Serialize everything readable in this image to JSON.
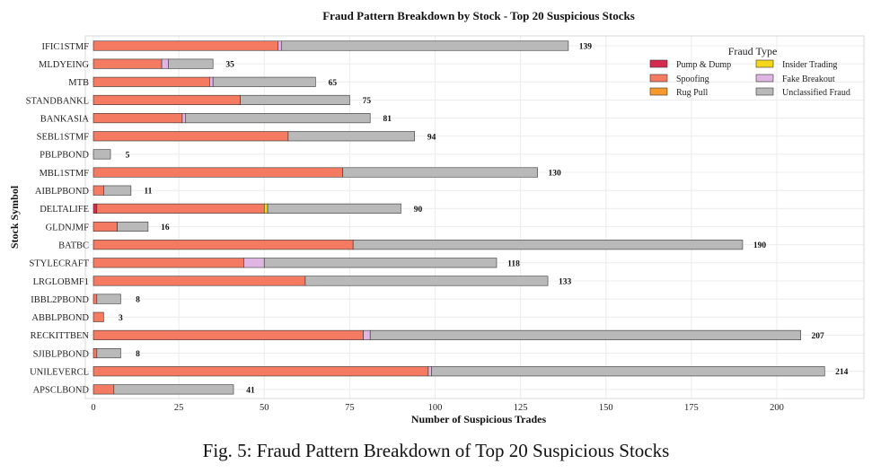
{
  "caption": "Fig. 5: Fraud Pattern Breakdown of Top 20 Suspicious Stocks",
  "chart_data": {
    "type": "bar",
    "orientation": "horizontal",
    "stacked": true,
    "title": "Fraud Pattern Breakdown by Stock - Top 20 Suspicious Stocks",
    "xlabel": "Number of Suspicious Trades",
    "ylabel": "Stock Symbol",
    "xlim": [
      0,
      225
    ],
    "xticks": [
      0,
      25,
      50,
      75,
      100,
      125,
      150,
      175,
      200
    ],
    "grid": true,
    "legend_title": "Fraud Type",
    "legend_position": "top-right",
    "categories": [
      "IFIC1STMF",
      "MLDYEING",
      "MTB",
      "STANDBANKL",
      "BANKASIA",
      "SEBL1STMF",
      "PBLPBOND",
      "MBL1STMF",
      "AIBLPBOND",
      "DELTALIFE",
      "GLDNJMF",
      "BATBC",
      "STYLECRAFT",
      "LRGLOBMF1",
      "IBBL2PBOND",
      "ABBLPBOND",
      "RECKITTBEN",
      "SJIBLPBOND",
      "UNILEVERCL",
      "APSCLBOND"
    ],
    "totals": [
      139,
      35,
      65,
      75,
      81,
      94,
      5,
      130,
      11,
      90,
      16,
      190,
      118,
      133,
      8,
      3,
      207,
      8,
      214,
      41
    ],
    "series": [
      {
        "name": "Pump & Dump",
        "color": "#d6294f",
        "values": [
          0,
          0,
          0,
          0,
          0,
          0,
          0,
          0,
          0,
          1,
          0,
          0,
          0,
          0,
          0,
          0,
          0,
          0,
          0,
          0
        ]
      },
      {
        "name": "Spoofing",
        "color": "#f47a62",
        "values": [
          54,
          20,
          34,
          43,
          26,
          57,
          0,
          73,
          3,
          49,
          7,
          76,
          44,
          62,
          1,
          3,
          79,
          1,
          98,
          6
        ]
      },
      {
        "name": "Rug Pull",
        "color": "#f79a2b",
        "values": [
          0,
          0,
          0,
          0,
          0,
          0,
          0,
          0,
          0,
          0,
          0,
          0,
          0,
          0,
          0,
          0,
          0,
          0,
          0,
          0
        ]
      },
      {
        "name": "Insider Trading",
        "color": "#f4d61a",
        "values": [
          0,
          0,
          0,
          0,
          0,
          0,
          0,
          0,
          0,
          1,
          0,
          0,
          0,
          0,
          0,
          0,
          0,
          0,
          0,
          0
        ]
      },
      {
        "name": "Fake Breakout",
        "color": "#dfb5e4",
        "values": [
          1,
          2,
          1,
          0,
          1,
          0,
          0,
          0,
          0,
          0,
          0,
          0,
          6,
          0,
          0,
          0,
          2,
          0,
          1,
          0
        ]
      },
      {
        "name": "Unclassified Fraud",
        "color": "#b9b9b9",
        "values": [
          84,
          13,
          30,
          32,
          54,
          37,
          5,
          57,
          8,
          39,
          9,
          114,
          68,
          71,
          7,
          0,
          126,
          7,
          115,
          35
        ]
      }
    ]
  }
}
